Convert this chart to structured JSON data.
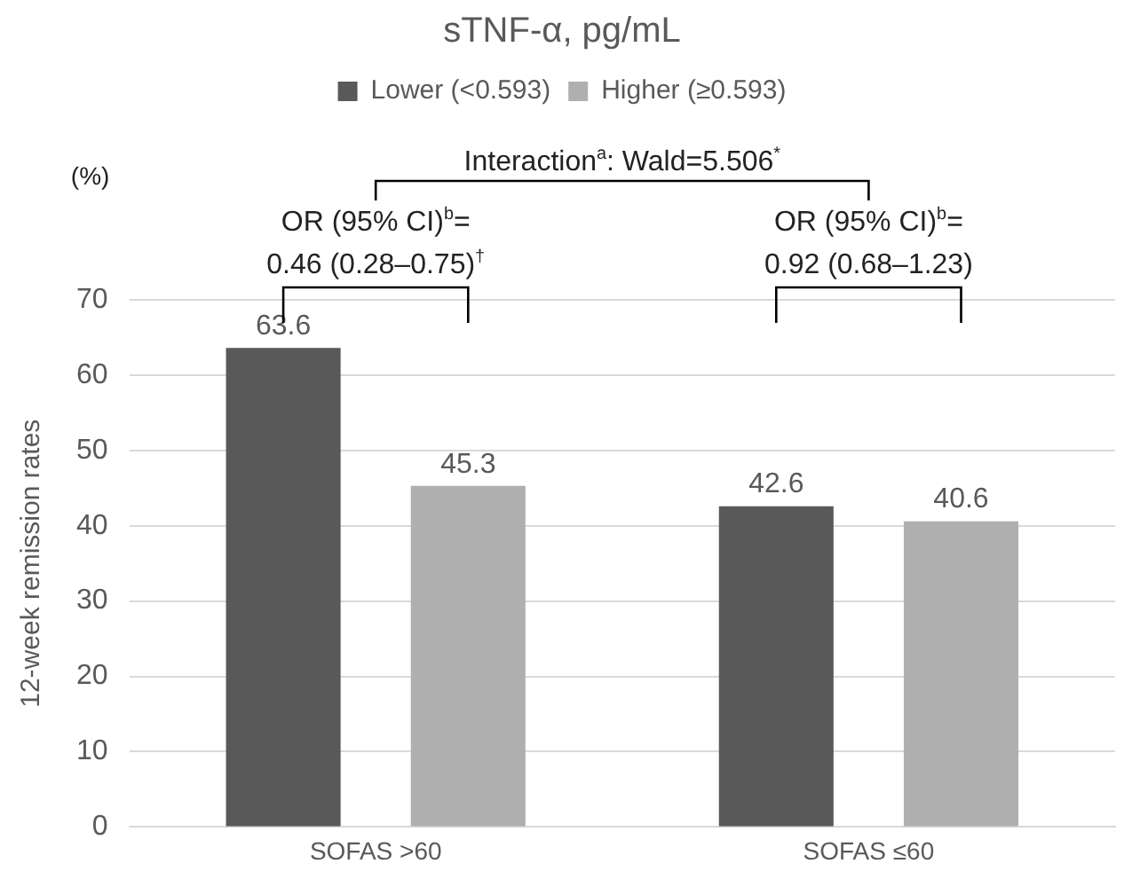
{
  "chart_data": {
    "type": "bar",
    "title": "sTNF-α, pg/mL",
    "ylabel": "12-week remission rates",
    "categories": [
      "SOFAS >60",
      "SOFAS ≤60"
    ],
    "series": [
      {
        "name": "Lower (<0.593)",
        "color": "#595959",
        "values": [
          63.6,
          42.6
        ]
      },
      {
        "name": "Higher (≥0.593)",
        "color": "#afafaf",
        "values": [
          45.3,
          40.6
        ]
      }
    ],
    "ylim": [
      0,
      70
    ],
    "yticks": [
      0,
      10,
      20,
      30,
      40,
      50,
      60,
      70
    ],
    "grid": "y",
    "legend": "top",
    "data_labels": true,
    "annotations": [
      "(%)",
      "Interaction$^{a}$: Wald=5.506$^{*}$",
      "OR (95% CI)$^{b}$=\n0.46 (0.28–0.75)$^{†}$",
      "OR (95% CI)$^{b}$=\n0.92 (0.68–1.23)"
    ]
  }
}
